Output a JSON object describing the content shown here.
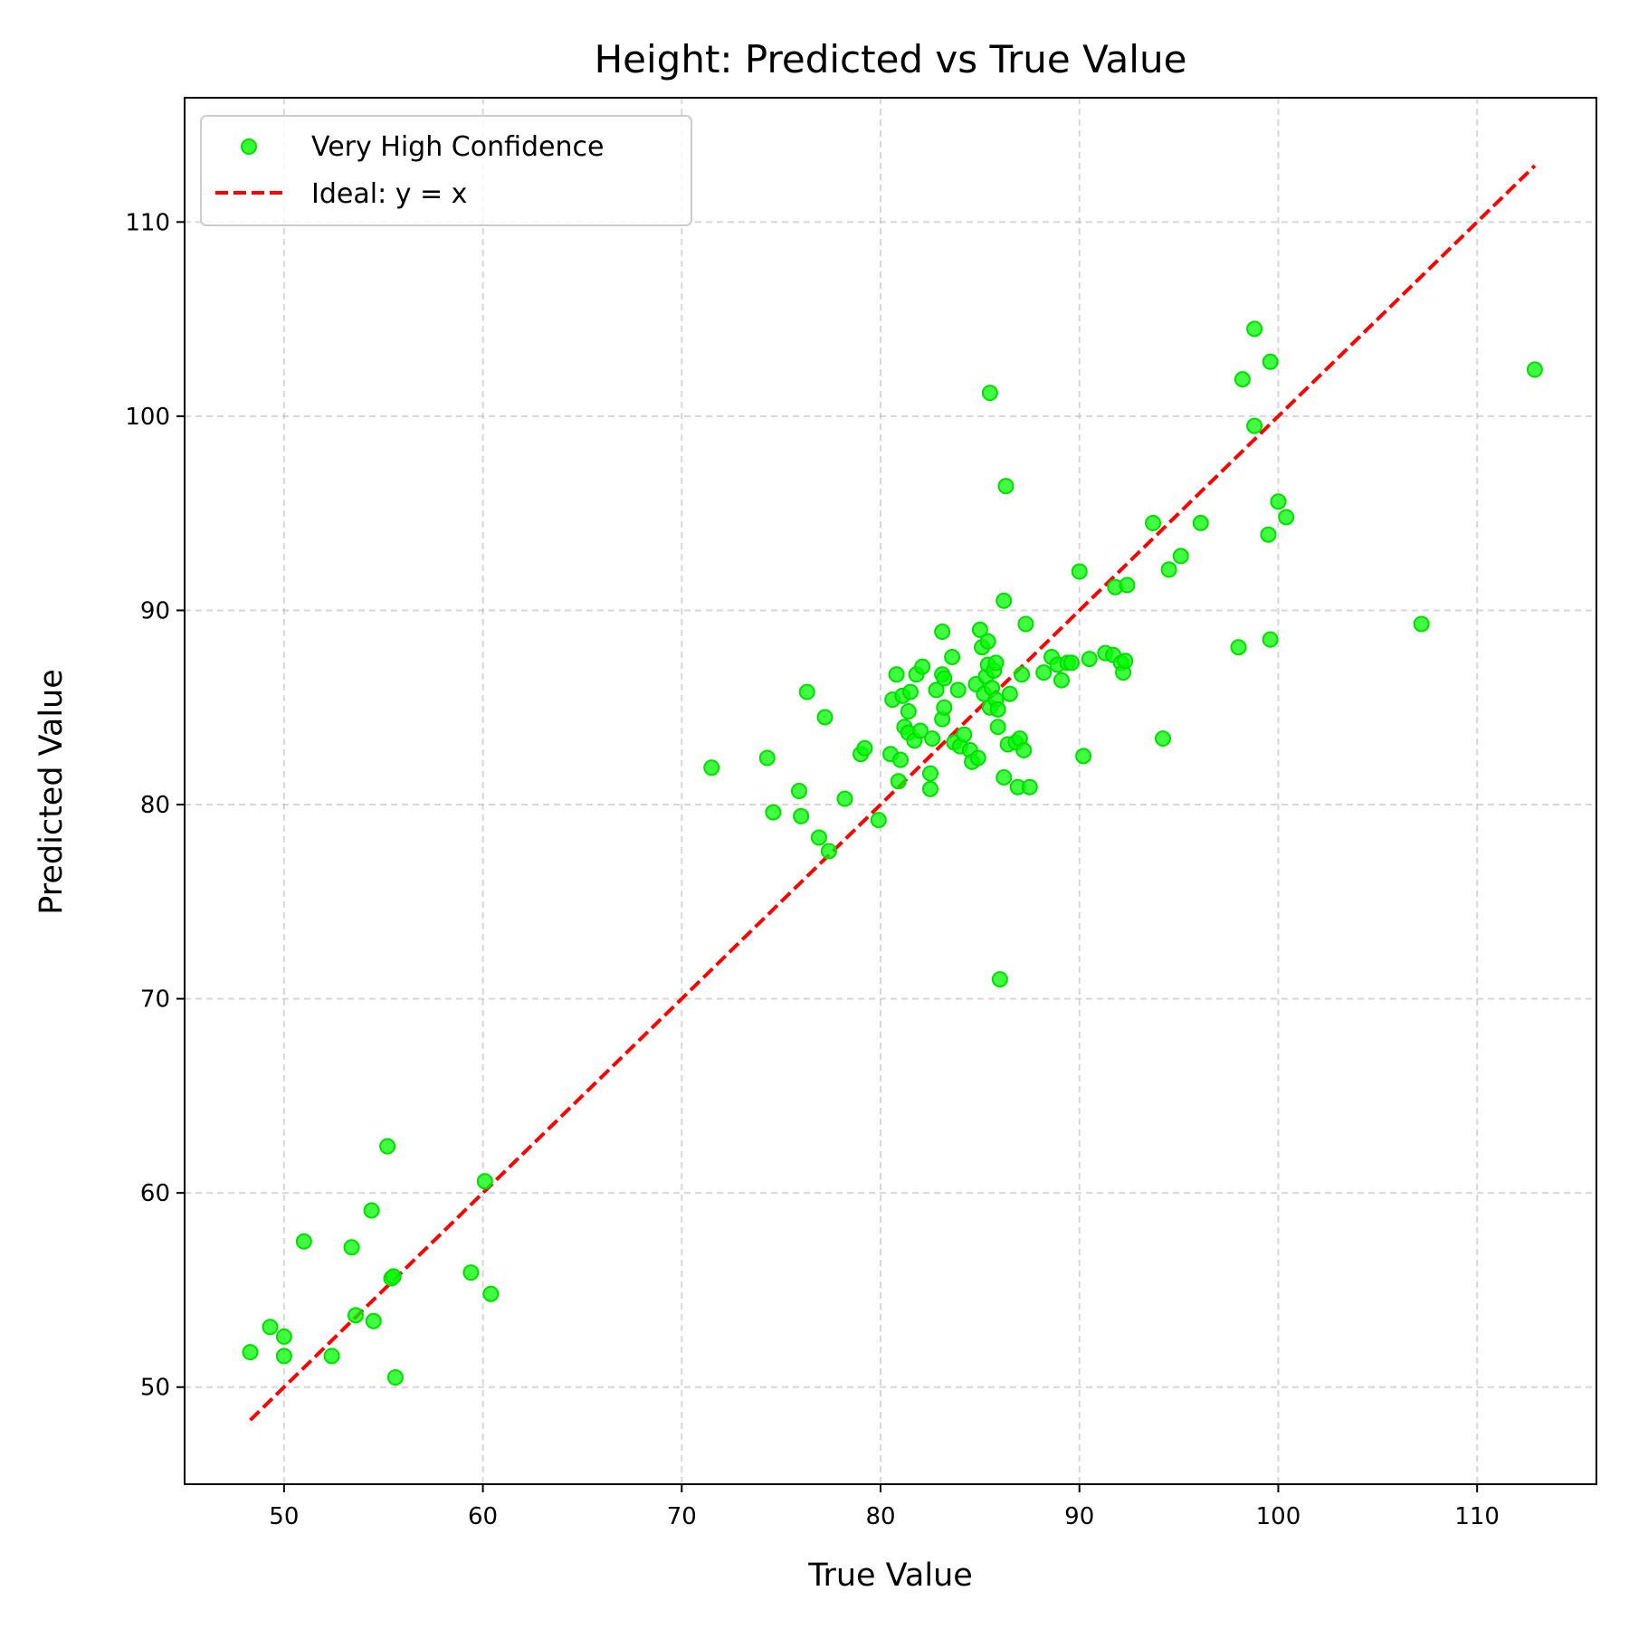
{
  "chart_data": {
    "type": "scatter",
    "title": "Height: Predicted vs True Value",
    "xlabel": "True Value",
    "ylabel": "Predicted Value",
    "xlim": [
      45,
      116
    ],
    "ylim": [
      45,
      116.4
    ],
    "xticks": [
      50,
      60,
      70,
      80,
      90,
      100,
      110
    ],
    "yticks": [
      50,
      60,
      70,
      80,
      90,
      100,
      110
    ],
    "grid": true,
    "legend_position": "top-left",
    "colors": {
      "points": "#00ff00",
      "ideal": "#ff0000"
    },
    "series": [
      {
        "name": "Very High Confidence",
        "type": "scatter",
        "points": [
          [
            48.3,
            51.8
          ],
          [
            49.3,
            53.1
          ],
          [
            50.0,
            52.6
          ],
          [
            50.0,
            51.6
          ],
          [
            51.0,
            57.5
          ],
          [
            52.4,
            51.6
          ],
          [
            53.4,
            57.2
          ],
          [
            53.6,
            53.7
          ],
          [
            54.4,
            59.1
          ],
          [
            54.5,
            53.4
          ],
          [
            55.2,
            62.4
          ],
          [
            55.4,
            55.6
          ],
          [
            55.5,
            55.7
          ],
          [
            55.6,
            50.5
          ],
          [
            59.4,
            55.9
          ],
          [
            60.1,
            60.6
          ],
          [
            60.4,
            54.8
          ],
          [
            71.5,
            81.9
          ],
          [
            74.3,
            82.4
          ],
          [
            74.6,
            79.6
          ],
          [
            75.9,
            80.7
          ],
          [
            76.0,
            79.4
          ],
          [
            76.3,
            85.8
          ],
          [
            76.9,
            78.3
          ],
          [
            77.2,
            84.5
          ],
          [
            77.4,
            77.6
          ],
          [
            78.2,
            80.3
          ],
          [
            79.0,
            82.6
          ],
          [
            79.2,
            82.9
          ],
          [
            79.9,
            79.2
          ],
          [
            80.5,
            82.6
          ],
          [
            80.6,
            85.4
          ],
          [
            80.8,
            86.7
          ],
          [
            80.9,
            81.2
          ],
          [
            81.0,
            82.3
          ],
          [
            81.1,
            85.6
          ],
          [
            81.2,
            84.0
          ],
          [
            81.4,
            83.7
          ],
          [
            81.4,
            84.8
          ],
          [
            81.5,
            85.8
          ],
          [
            81.7,
            83.3
          ],
          [
            81.8,
            86.7
          ],
          [
            82.0,
            83.8
          ],
          [
            82.1,
            87.1
          ],
          [
            82.5,
            81.6
          ],
          [
            82.5,
            80.8
          ],
          [
            82.6,
            83.4
          ],
          [
            82.8,
            85.9
          ],
          [
            83.1,
            88.9
          ],
          [
            83.1,
            86.7
          ],
          [
            83.1,
            84.4
          ],
          [
            83.2,
            85.0
          ],
          [
            83.2,
            86.5
          ],
          [
            83.6,
            87.6
          ],
          [
            83.7,
            83.2
          ],
          [
            83.9,
            85.9
          ],
          [
            84.0,
            83.0
          ],
          [
            84.2,
            83.6
          ],
          [
            84.5,
            82.8
          ],
          [
            84.6,
            82.2
          ],
          [
            84.9,
            82.4
          ],
          [
            84.8,
            86.2
          ],
          [
            85.0,
            89.0
          ],
          [
            85.1,
            88.1
          ],
          [
            85.2,
            85.7
          ],
          [
            85.3,
            86.6
          ],
          [
            85.4,
            87.2
          ],
          [
            85.4,
            88.4
          ],
          [
            85.5,
            85.0
          ],
          [
            85.5,
            101.2
          ],
          [
            85.6,
            86.0
          ],
          [
            85.7,
            86.9
          ],
          [
            85.8,
            87.3
          ],
          [
            85.8,
            85.4
          ],
          [
            85.9,
            84.9
          ],
          [
            85.9,
            84.0
          ],
          [
            86.0,
            71.0
          ],
          [
            86.2,
            81.4
          ],
          [
            86.2,
            90.5
          ],
          [
            86.3,
            96.4
          ],
          [
            86.4,
            83.1
          ],
          [
            86.5,
            85.7
          ],
          [
            86.8,
            83.2
          ],
          [
            86.9,
            80.9
          ],
          [
            87.0,
            83.4
          ],
          [
            87.1,
            86.7
          ],
          [
            87.2,
            82.8
          ],
          [
            87.3,
            89.3
          ],
          [
            87.5,
            80.9
          ],
          [
            88.2,
            86.8
          ],
          [
            88.6,
            87.6
          ],
          [
            88.9,
            87.2
          ],
          [
            89.1,
            86.4
          ],
          [
            89.4,
            87.3
          ],
          [
            89.6,
            87.3
          ],
          [
            90.0,
            92.0
          ],
          [
            90.2,
            82.5
          ],
          [
            90.5,
            87.5
          ],
          [
            91.3,
            87.8
          ],
          [
            91.7,
            87.7
          ],
          [
            91.8,
            91.2
          ],
          [
            92.1,
            87.3
          ],
          [
            92.2,
            86.8
          ],
          [
            92.3,
            87.4
          ],
          [
            92.4,
            91.3
          ],
          [
            93.7,
            94.5
          ],
          [
            94.2,
            83.4
          ],
          [
            94.5,
            92.1
          ],
          [
            95.1,
            92.8
          ],
          [
            96.1,
            94.5
          ],
          [
            98.0,
            88.1
          ],
          [
            98.2,
            101.9
          ],
          [
            98.8,
            99.5
          ],
          [
            98.8,
            104.5
          ],
          [
            99.5,
            93.9
          ],
          [
            99.6,
            88.5
          ],
          [
            99.6,
            102.8
          ],
          [
            100.0,
            95.6
          ],
          [
            100.4,
            94.8
          ],
          [
            107.2,
            89.3
          ],
          [
            112.9,
            102.4
          ]
        ]
      },
      {
        "name": "Ideal: y = x",
        "type": "line",
        "style": "dashed",
        "points": [
          [
            48.3,
            48.3
          ],
          [
            112.9,
            112.9
          ]
        ]
      }
    ]
  }
}
